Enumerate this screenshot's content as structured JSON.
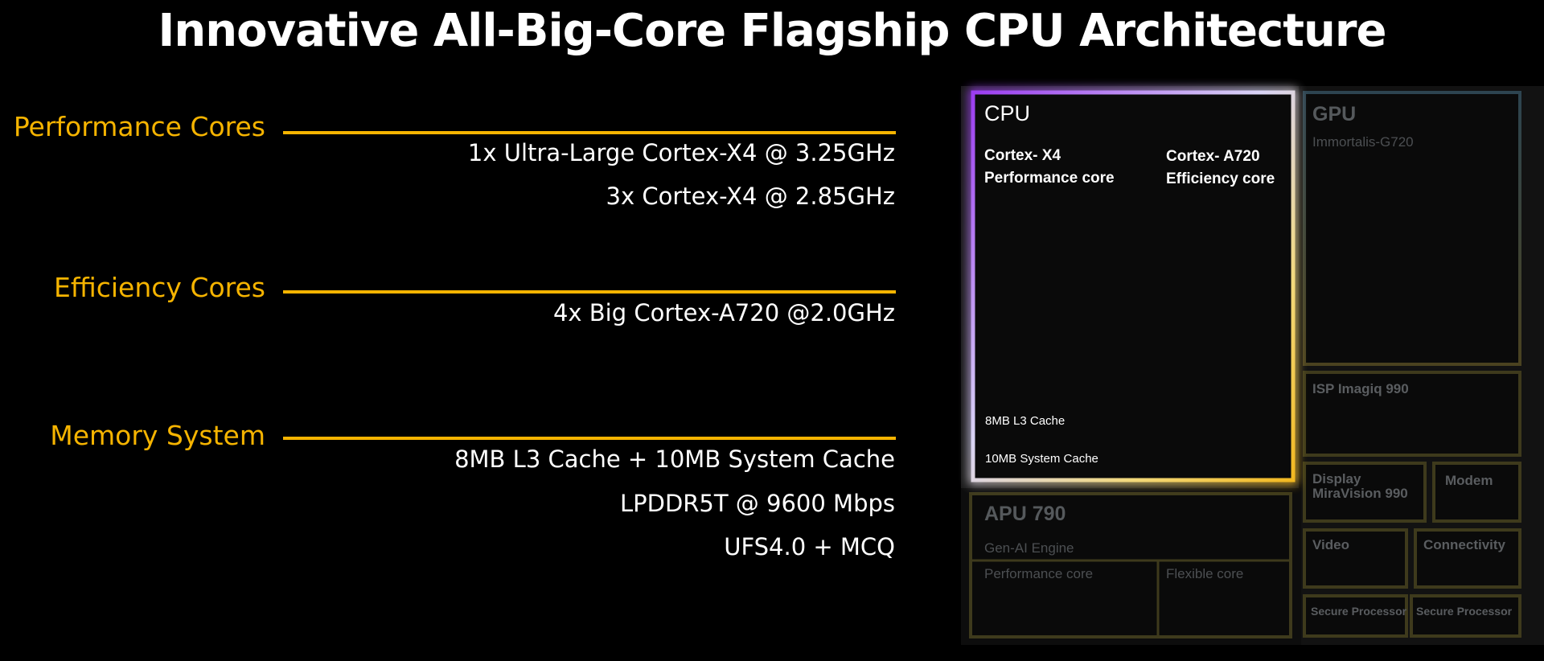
{
  "title": "Innovative All-Big-Core Flagship CPU Architecture",
  "colors": {
    "accent": "#f6b400",
    "text": "#ffffff",
    "background": "#000000"
  },
  "sections": [
    {
      "label": "Performance Cores",
      "specs": [
        "1x Ultra-Large Cortex-X4 @ 3.25GHz",
        "3x Cortex-X4 @ 2.85GHz"
      ]
    },
    {
      "label": "Efficiency  Cores",
      "specs": [
        "4x Big Cortex-A720 @2.0GHz"
      ]
    },
    {
      "label": "Memory System",
      "specs": [
        "8MB L3 Cache + 10MB System Cache",
        "LPDDR5T @ 9600 Mbps",
        "UFS4.0 + MCQ"
      ]
    }
  ],
  "diagram": {
    "cpu": {
      "title": "CPU",
      "perf_core": [
        "Cortex- X4",
        "Performance core"
      ],
      "eff_core": [
        "Cortex- A720",
        "Efficiency core"
      ],
      "l3_cache": "8MB L3 Cache",
      "system_cache": "10MB System Cache"
    },
    "gpu": {
      "title": "GPU",
      "subtitle": "Immortalis-G720"
    },
    "isp": "ISP Imagiq 990",
    "display": [
      "Display",
      "MiraVision 990"
    ],
    "modem": "Modem",
    "video": "Video",
    "connectivity": "Connectivity",
    "secure": [
      "Secure Processor",
      "Secure Processor"
    ],
    "apu": {
      "title": "APU 790",
      "subtitle": "Gen-AI Engine",
      "perf_core": "Performance core",
      "flex_core": "Flexible core"
    }
  }
}
